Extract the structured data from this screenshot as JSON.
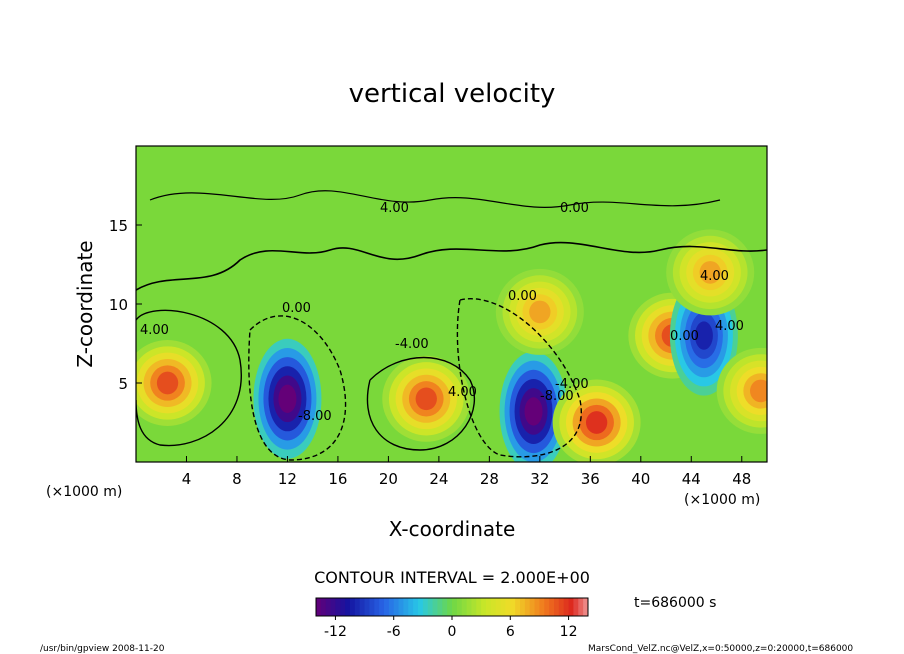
{
  "chart_data": {
    "type": "heatmap",
    "title": "vertical velocity",
    "xlabel": "X-coordinate",
    "ylabel": "Z-coordinate",
    "x_unit_left": "(×1000 m)",
    "x_unit_right": "(×1000 m)",
    "xlim": [
      0,
      50
    ],
    "ylim": [
      0,
      20
    ],
    "x_ticks": [
      "4",
      "8",
      "12",
      "16",
      "20",
      "24",
      "28",
      "32",
      "36",
      "40",
      "44",
      "48"
    ],
    "y_ticks": [
      "5",
      "10",
      "15"
    ],
    "contour_interval_text": "CONTOUR INTERVAL = 2.000E+00",
    "contour_labels": [
      "4.00",
      "0.00",
      "0.00",
      "4.00",
      "-8.00",
      "4.00",
      "0.00",
      "-4.00",
      "-4.00",
      "-8.00",
      "0.00",
      "4.00",
      "4.00"
    ],
    "colorbar": {
      "min": -14,
      "max": 14,
      "ticks": [
        "-12",
        "-6",
        "0",
        "6",
        "12"
      ]
    },
    "features": [
      {
        "x": 2.5,
        "z": 5.0,
        "value": 11
      },
      {
        "x": 12.0,
        "z": 4.0,
        "value": -15
      },
      {
        "x": 23.0,
        "z": 4.0,
        "value": 11
      },
      {
        "x": 31.5,
        "z": 3.2,
        "value": -15
      },
      {
        "x": 36.5,
        "z": 2.5,
        "value": 12
      },
      {
        "x": 42.5,
        "z": 8.0,
        "value": 11
      },
      {
        "x": 45.0,
        "z": 8.0,
        "value": -10
      },
      {
        "x": 49.5,
        "z": 4.5,
        "value": 9
      },
      {
        "x": 32.0,
        "z": 9.5,
        "value": 8
      },
      {
        "x": 45.5,
        "z": 12.0,
        "value": 8
      }
    ],
    "grid": false,
    "legend": "bottom"
  },
  "time_label": "t=686000 s",
  "footer_left": "/usr/bin/gpview  2008-11-20",
  "footer_right": "MarsCond_VelZ.nc@VelZ,x=0:50000,z=0:20000,t=686000"
}
